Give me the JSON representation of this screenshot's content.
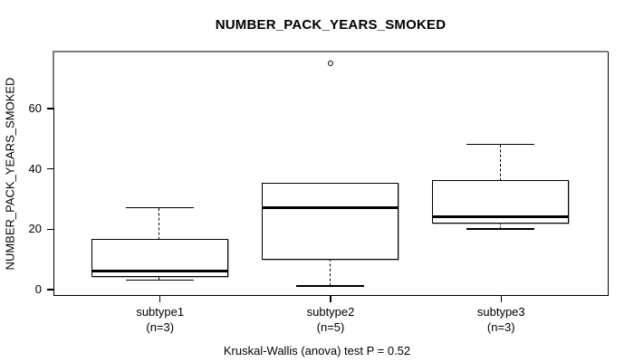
{
  "chart_data": {
    "type": "boxplot",
    "title": "NUMBER_PACK_YEARS_SMOKED",
    "ylabel": "NUMBER_PACK_YEARS_SMOKED",
    "caption": "Kruskal-Wallis (anova) test P = 0.52",
    "yticks": [
      0,
      20,
      40,
      60
    ],
    "ylim": [
      -1.5,
      78.6
    ],
    "grid": false,
    "legend": "none",
    "groups": [
      {
        "label": "subtype1",
        "sublabel": "(n=3)",
        "n": 3,
        "whisker_low": 3,
        "q1": 4.5,
        "median": 6,
        "q3": 16.5,
        "whisker_high": 27,
        "outliers": []
      },
      {
        "label": "subtype2",
        "sublabel": "(n=5)",
        "n": 5,
        "whisker_low": 1,
        "q1": 10,
        "median": 27,
        "q3": 35,
        "whisker_high": 35,
        "outliers": [
          75
        ]
      },
      {
        "label": "subtype3",
        "sublabel": "(n=3)",
        "n": 3,
        "whisker_low": 20,
        "q1": 22,
        "median": 24,
        "q3": 36,
        "whisker_high": 48,
        "outliers": []
      }
    ],
    "colors": {
      "line": "#000000",
      "box_fill": "#ffffff",
      "frame_accent": "#808080",
      "background": "#ffffff"
    }
  }
}
